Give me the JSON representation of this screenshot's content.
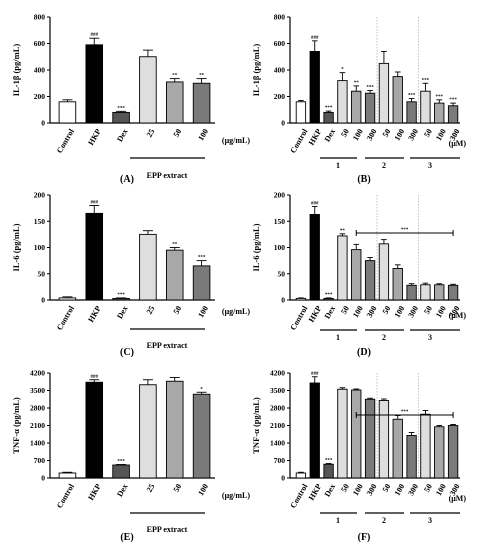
{
  "chart_data": [
    {
      "panel_label": "(A)",
      "type": "bar",
      "ylabel": "IL-1β (pg/mL)",
      "ylim": [
        0,
        800
      ],
      "yticks": [
        0,
        200,
        400,
        600,
        800
      ],
      "categories": [
        "Control",
        "HKP",
        "Dex",
        "25",
        "50",
        "100"
      ],
      "values": [
        160,
        590,
        80,
        500,
        310,
        300
      ],
      "errors": [
        15,
        50,
        8,
        50,
        25,
        35
      ],
      "significance": [
        "",
        "###",
        "***",
        "",
        "**",
        "**"
      ],
      "fills": [
        "#ffffff",
        "#000000",
        "#555555",
        "#dedede",
        "#a8a8a8",
        "#7a7a7a"
      ],
      "unit_label": "(μg/mL)",
      "group_labels": [
        "EPP extract"
      ]
    },
    {
      "panel_label": "(B)",
      "type": "bar",
      "ylabel": "IL-1β (pg/mL)",
      "ylim": [
        0,
        800
      ],
      "yticks": [
        0,
        200,
        400,
        600,
        800
      ],
      "categories": [
        "Control",
        "HKP",
        "Dex",
        "50",
        "100",
        "300",
        "50",
        "100",
        "300",
        "50",
        "100",
        "300"
      ],
      "values": [
        160,
        540,
        80,
        320,
        240,
        225,
        450,
        350,
        160,
        240,
        150,
        130
      ],
      "errors": [
        10,
        80,
        10,
        60,
        40,
        20,
        90,
        35,
        25,
        60,
        25,
        20
      ],
      "significance": [
        "",
        "###",
        "***",
        "*",
        "**",
        "***",
        "",
        "",
        "***",
        "***",
        "***",
        "***"
      ],
      "fills": [
        "#ffffff",
        "#000000",
        "#555555",
        "#dedede",
        "#a8a8a8",
        "#7a7a7a",
        "#dedede",
        "#a8a8a8",
        "#7a7a7a",
        "#dedede",
        "#a8a8a8",
        "#7a7a7a"
      ],
      "unit_label": "(μM)",
      "group_labels": [
        "1",
        "2",
        "3"
      ]
    },
    {
      "panel_label": "(C)",
      "type": "bar",
      "ylabel": "IL-6 (pg/mL)",
      "ylim": [
        0,
        200
      ],
      "yticks": [
        0,
        50,
        100,
        150,
        200
      ],
      "categories": [
        "Control",
        "HKP",
        "Dex",
        "25",
        "50",
        "100"
      ],
      "values": [
        4,
        165,
        3,
        125,
        95,
        65
      ],
      "errors": [
        2,
        15,
        1,
        7,
        5,
        10
      ],
      "significance": [
        "",
        "###",
        "***",
        "",
        "**",
        "***"
      ],
      "fills": [
        "#ffffff",
        "#000000",
        "#555555",
        "#dedede",
        "#a8a8a8",
        "#7a7a7a"
      ],
      "unit_label": "(μg/mL)",
      "group_labels": [
        "EPP extract"
      ]
    },
    {
      "panel_label": "(D)",
      "type": "bar",
      "ylabel": "IL-6 (pg/mL)",
      "ylim": [
        0,
        200
      ],
      "yticks": [
        0,
        50,
        100,
        150,
        200
      ],
      "categories": [
        "Control",
        "HKP",
        "Dex",
        "50",
        "100",
        "300",
        "50",
        "100",
        "300",
        "50",
        "100",
        "300"
      ],
      "values": [
        3,
        163,
        3,
        122,
        96,
        75,
        107,
        60,
        28,
        29,
        29,
        28
      ],
      "errors": [
        1,
        15,
        1,
        4,
        10,
        6,
        8,
        7,
        3,
        3,
        2,
        2
      ],
      "significance": [
        "",
        "###",
        "***",
        "**",
        "",
        "",
        "",
        "",
        "",
        "",
        "",
        ""
      ],
      "fills": [
        "#ffffff",
        "#000000",
        "#555555",
        "#dedede",
        "#a8a8a8",
        "#7a7a7a",
        "#dedede",
        "#a8a8a8",
        "#7a7a7a",
        "#dedede",
        "#a8a8a8",
        "#7a7a7a"
      ],
      "bracket_label": "***",
      "unit_label": "(μM)",
      "group_labels": [
        "1",
        "2",
        "3"
      ]
    },
    {
      "panel_label": "(E)",
      "type": "bar",
      "ylabel": "TNF-α (pg/mL)",
      "ylim": [
        0,
        4200
      ],
      "yticks": [
        0,
        700,
        1400,
        2100,
        2800,
        3500,
        4200
      ],
      "categories": [
        "Control",
        "HKP",
        "Dex",
        "25",
        "50",
        "100"
      ],
      "values": [
        200,
        3830,
        520,
        3730,
        3870,
        3350
      ],
      "errors": [
        30,
        100,
        20,
        200,
        150,
        80
      ],
      "significance": [
        "",
        "###",
        "***",
        "",
        "",
        "*"
      ],
      "fills": [
        "#ffffff",
        "#000000",
        "#555555",
        "#dedede",
        "#a8a8a8",
        "#7a7a7a"
      ],
      "unit_label": "(μg/mL)",
      "group_labels": [
        "EPP extract"
      ]
    },
    {
      "panel_label": "(F)",
      "type": "bar",
      "ylabel": "TNF-α (pg/mL)",
      "ylim": [
        0,
        4200
      ],
      "yticks": [
        0,
        700,
        1400,
        2100,
        2800,
        3500,
        4200
      ],
      "categories": [
        "Control",
        "HKP",
        "Dex",
        "50",
        "100",
        "300",
        "50",
        "100",
        "300",
        "50",
        "100",
        "300"
      ],
      "values": [
        200,
        3800,
        550,
        3550,
        3520,
        3150,
        3100,
        2350,
        1700,
        2550,
        2050,
        2100
      ],
      "errors": [
        30,
        250,
        30,
        60,
        40,
        40,
        60,
        150,
        120,
        150,
        50,
        40
      ],
      "significance": [
        "",
        "###",
        "***",
        "",
        "",
        "",
        "",
        "",
        "",
        "",
        "",
        ""
      ],
      "fills": [
        "#ffffff",
        "#000000",
        "#555555",
        "#dedede",
        "#a8a8a8",
        "#7a7a7a",
        "#dedede",
        "#a8a8a8",
        "#7a7a7a",
        "#dedede",
        "#a8a8a8",
        "#7a7a7a"
      ],
      "bracket_label": "***",
      "unit_label": "(μM)",
      "group_labels": [
        "1",
        "2",
        "3"
      ]
    }
  ]
}
